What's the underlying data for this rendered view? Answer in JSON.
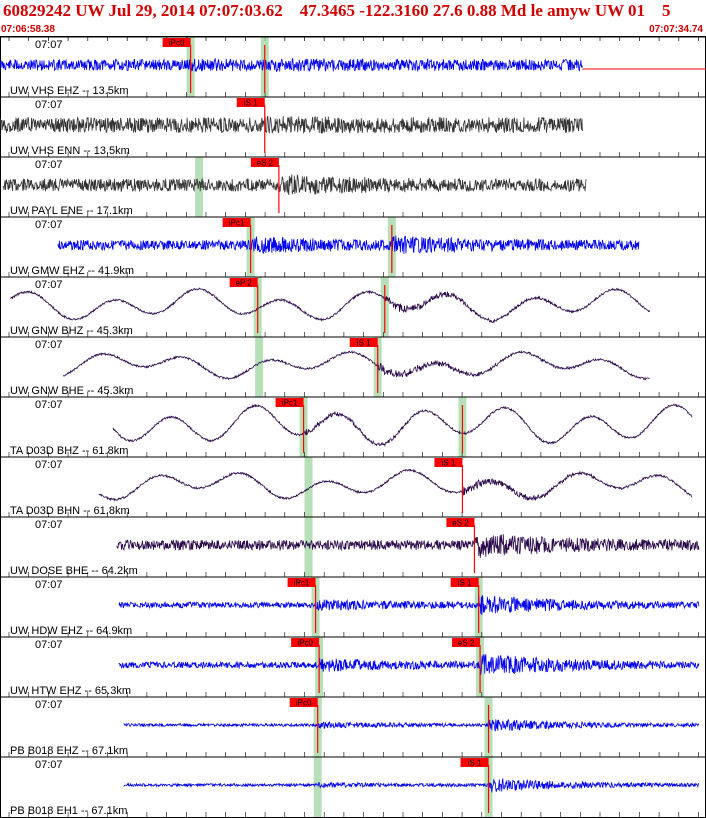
{
  "header": {
    "title": "60829242 UW Jul 29, 2014 07:07:03.62    47.3465 -122.3160 27.6 0.88 Md le amyw UW 01    5",
    "start_time": "07:06:58.38",
    "end_time": "07:07:34.74"
  },
  "colors": {
    "header_red": "#d40000",
    "pick_red": "#ff0000",
    "pick_band": "#9fd6a0",
    "blue": "#0000ee",
    "gray": "#333333",
    "purple": "#2b0a4a"
  },
  "chart_data": {
    "type": "line",
    "title": "60829242 UW Jul 29, 2014 07:07:03.62    47.3465 -122.3160 27.6 0.88 Md le amyw UW 01    5",
    "x_range": [
      "07:06:58.38",
      "07:07:34.74"
    ],
    "x_unit": "time",
    "tick_label": "07:07",
    "series": [
      {
        "name": "UW VHS EHZ -- 13.5km",
        "color": "#0000ee",
        "kind": "noise",
        "start": 0.0,
        "end": 0.825,
        "amp": 0.4,
        "seed": 11,
        "picks": [
          {
            "label": "iPc0",
            "t": 0.27,
            "band": true
          },
          {
            "label": "",
            "t": 0.375,
            "band": true
          }
        ],
        "arrivals": [
          {
            "t": 0.27,
            "gain": 1.2
          },
          {
            "t": 0.375,
            "gain": 1.3
          }
        ]
      },
      {
        "name": "UW VHS ENN -- 13.5km",
        "color": "#333333",
        "kind": "noise",
        "start": 0.0,
        "end": 0.825,
        "amp": 0.55,
        "seed": 12,
        "picks": [
          {
            "label": "iS 1",
            "t": 0.375,
            "band": false
          }
        ],
        "arrivals": [
          {
            "t": 0.375,
            "gain": 1.2
          }
        ]
      },
      {
        "name": "UW PAYL ENE -- 17.1km",
        "color": "#333333",
        "kind": "noise",
        "start": 0.005,
        "end": 0.83,
        "amp": 0.45,
        "seed": 13,
        "picks": [
          {
            "label": "eS 2",
            "t": 0.395,
            "band": false
          }
        ],
        "bands": [
          0.282
        ],
        "arrivals": [
          {
            "t": 0.395,
            "gain": 1.8
          }
        ]
      },
      {
        "name": "UW GMW EHZ -- 41.9km",
        "color": "#0000ee",
        "kind": "noise",
        "start": 0.082,
        "end": 0.905,
        "amp": 0.35,
        "seed": 14,
        "picks": [
          {
            "label": "iPc1",
            "t": 0.355,
            "band": true
          },
          {
            "label": "",
            "t": 0.555,
            "band": true
          }
        ],
        "arrivals": [
          {
            "t": 0.355,
            "gain": 1.8
          },
          {
            "t": 0.555,
            "gain": 2.0
          }
        ]
      },
      {
        "name": "UW GNW BHZ -- 45.3km",
        "color": "#2b0a4a",
        "kind": "wave",
        "start": 0.015,
        "end": 0.92,
        "amp": 0.4,
        "seed": 15,
        "picks": [
          {
            "label": "eP 2",
            "t": 0.365,
            "band": true
          },
          {
            "label": "",
            "t": 0.545,
            "band": true
          }
        ],
        "arrivals": [
          {
            "t": 0.545,
            "gain": 2.2
          }
        ]
      },
      {
        "name": "UW GNW BHE -- 45.3km",
        "color": "#2b0a4a",
        "kind": "wave",
        "start": 0.09,
        "end": 0.92,
        "amp": 0.3,
        "seed": 16,
        "picks": [
          {
            "label": "iS 1",
            "t": 0.535,
            "band": true
          }
        ],
        "bands": [
          0.367
        ],
        "arrivals": [
          {
            "t": 0.535,
            "gain": 2.6
          }
        ]
      },
      {
        "name": "TA D03D BHZ -- 61.8km",
        "color": "#2b0a4a",
        "kind": "wave",
        "start": 0.16,
        "end": 0.98,
        "amp": 0.55,
        "seed": 17,
        "picks": [
          {
            "label": "iPc1",
            "t": 0.43,
            "band": true
          },
          {
            "label": "",
            "t": 0.655,
            "band": true
          }
        ],
        "arrivals": [
          {
            "t": 0.43,
            "gain": 1.5
          }
        ]
      },
      {
        "name": "TA D03D BHN -- 61.8km",
        "color": "#2b0a4a",
        "kind": "wave",
        "start": 0.14,
        "end": 0.98,
        "amp": 0.35,
        "seed": 18,
        "picks": [
          {
            "label": "iS 1",
            "t": 0.655,
            "band": false
          }
        ],
        "bands": [
          0.437
        ],
        "arrivals": [
          {
            "t": 0.655,
            "gain": 2.4
          }
        ]
      },
      {
        "name": "UW DOSE BHE -- 64.2km",
        "color": "#2b0a4a",
        "kind": "noise",
        "start": 0.165,
        "end": 0.99,
        "amp": 0.35,
        "seed": 19,
        "picks": [
          {
            "label": "eS 2",
            "t": 0.672,
            "band": false
          }
        ],
        "bands": [
          0.437
        ],
        "arrivals": [
          {
            "t": 0.672,
            "gain": 2.8
          }
        ]
      },
      {
        "name": "UW HDW EHZ -- 64.9km",
        "color": "#0000ee",
        "kind": "noise",
        "start": 0.168,
        "end": 0.99,
        "amp": 0.2,
        "seed": 20,
        "picks": [
          {
            "label": "iPc1",
            "t": 0.447,
            "band": true
          },
          {
            "label": "iS 1",
            "t": 0.678,
            "band": true
          }
        ],
        "arrivals": [
          {
            "t": 0.447,
            "gain": 2.2
          },
          {
            "t": 0.678,
            "gain": 4.0
          }
        ]
      },
      {
        "name": "UW HTW EHZ -- 65.3km",
        "color": "#0000ee",
        "kind": "noise",
        "start": 0.168,
        "end": 0.99,
        "amp": 0.22,
        "seed": 21,
        "picks": [
          {
            "label": "iPc0",
            "t": 0.452,
            "band": true
          },
          {
            "label": "eS 2",
            "t": 0.68,
            "band": true
          }
        ],
        "arrivals": [
          {
            "t": 0.452,
            "gain": 2.5
          },
          {
            "t": 0.68,
            "gain": 4.0
          }
        ]
      },
      {
        "name": "PB B018 EHZ -- 67.1km",
        "color": "#0000ee",
        "kind": "noise",
        "start": 0.175,
        "end": 0.99,
        "amp": 0.1,
        "seed": 22,
        "picks": [
          {
            "label": "iPc0",
            "t": 0.45,
            "band": true
          },
          {
            "label": "",
            "t": 0.692,
            "band": true
          }
        ],
        "arrivals": [
          {
            "t": 0.45,
            "gain": 2.5
          },
          {
            "t": 0.692,
            "gain": 5.0
          }
        ]
      },
      {
        "name": "PB B018 EH1 -- 67.1km",
        "color": "#0000ee",
        "kind": "noise",
        "start": 0.175,
        "end": 0.99,
        "amp": 0.1,
        "seed": 23,
        "picks": [
          {
            "label": "iS 1",
            "t": 0.692,
            "band": true
          }
        ],
        "bands": [
          0.45
        ],
        "arrivals": [
          {
            "t": 0.45,
            "gain": 2.0
          },
          {
            "t": 0.692,
            "gain": 5.5
          }
        ]
      }
    ]
  }
}
